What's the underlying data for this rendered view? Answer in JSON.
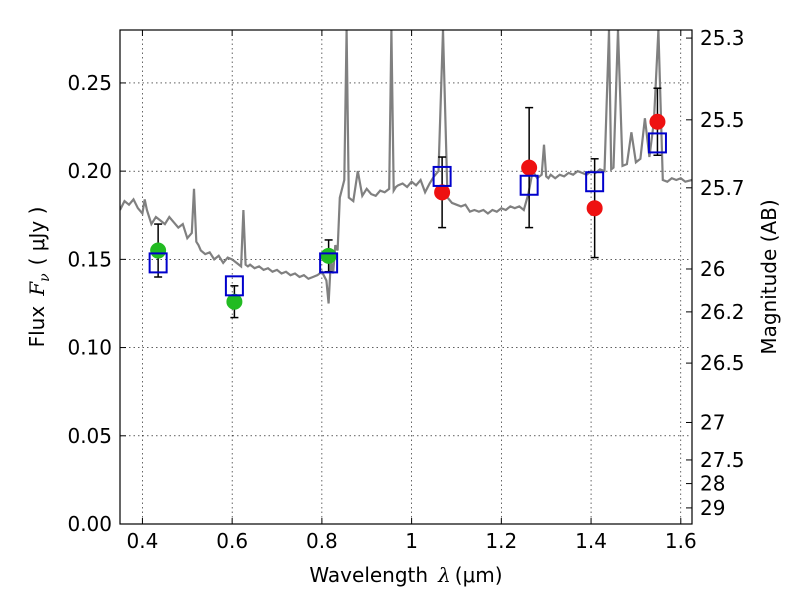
{
  "chart_data": {
    "type": "scatter",
    "xlabel_text": "Wavelength",
    "xlabel_symbol": "λ",
    "xlabel_unit": "(μm)",
    "ylabel_text": "Flux",
    "ylabel_symbol": "F",
    "ylabel_sub": "ν",
    "ylabel_unit": "( μJy )",
    "y2label": "Magnitude (AB)",
    "xlim": [
      0.35,
      1.625
    ],
    "ylim": [
      0.0,
      0.28
    ],
    "x_ticks": [
      0.4,
      0.6,
      0.8,
      1.0,
      1.2,
      1.4,
      1.6
    ],
    "x_tick_labels": [
      "0.4",
      "0.6",
      "0.8",
      "1",
      "1.2",
      "1.4",
      "1.6"
    ],
    "y_ticks": [
      0.0,
      0.05,
      0.1,
      0.15,
      0.2,
      0.25
    ],
    "y_tick_labels": [
      "0.00",
      "0.05",
      "0.10",
      "0.15",
      "0.20",
      "0.25"
    ],
    "y2_tick_labels": [
      "25.3",
      "25.5",
      "25.7",
      "26",
      "26.2",
      "26.5",
      "27",
      "27.5",
      "28",
      "29"
    ],
    "y2_tick_mags": [
      25.3,
      25.5,
      25.7,
      26,
      26.2,
      26.5,
      27,
      27.5,
      28,
      29
    ],
    "grid": true,
    "colors": {
      "spectrum": "#808080",
      "green_points": "#22bb22",
      "red_points": "#ee1111",
      "model_squares": "#0000cc",
      "errorbar": "#000000"
    },
    "spectrum": {
      "name": "",
      "x": [
        0.35,
        0.36,
        0.37,
        0.38,
        0.39,
        0.4,
        0.405,
        0.41,
        0.42,
        0.43,
        0.44,
        0.45,
        0.46,
        0.47,
        0.48,
        0.49,
        0.5,
        0.51,
        0.515,
        0.52,
        0.525,
        0.53,
        0.54,
        0.55,
        0.56,
        0.57,
        0.58,
        0.59,
        0.6,
        0.61,
        0.62,
        0.625,
        0.63,
        0.635,
        0.64,
        0.65,
        0.66,
        0.67,
        0.68,
        0.69,
        0.7,
        0.71,
        0.72,
        0.73,
        0.74,
        0.75,
        0.76,
        0.77,
        0.78,
        0.79,
        0.8,
        0.81,
        0.815,
        0.82,
        0.825,
        0.83,
        0.835,
        0.84,
        0.85,
        0.855,
        0.86,
        0.87,
        0.88,
        0.89,
        0.9,
        0.91,
        0.92,
        0.93,
        0.94,
        0.95,
        0.955,
        0.96,
        0.965,
        0.97,
        0.98,
        0.99,
        1.0,
        1.01,
        1.02,
        1.03,
        1.04,
        1.05,
        1.06,
        1.07,
        1.08,
        1.09,
        1.1,
        1.11,
        1.12,
        1.13,
        1.14,
        1.15,
        1.16,
        1.17,
        1.18,
        1.19,
        1.2,
        1.21,
        1.22,
        1.23,
        1.24,
        1.25,
        1.26,
        1.27,
        1.28,
        1.29,
        1.295,
        1.3,
        1.305,
        1.31,
        1.32,
        1.33,
        1.34,
        1.35,
        1.36,
        1.37,
        1.38,
        1.39,
        1.4,
        1.41,
        1.42,
        1.43,
        1.44,
        1.445,
        1.45,
        1.455,
        1.46,
        1.47,
        1.48,
        1.49,
        1.5,
        1.51,
        1.52,
        1.53,
        1.54,
        1.55,
        1.56,
        1.57,
        1.58,
        1.59,
        1.6,
        1.61,
        1.625
      ],
      "y": [
        0.178,
        0.183,
        0.181,
        0.184,
        0.179,
        0.176,
        0.184,
        0.178,
        0.17,
        0.174,
        0.172,
        0.17,
        0.174,
        0.171,
        0.168,
        0.17,
        0.162,
        0.165,
        0.19,
        0.16,
        0.158,
        0.155,
        0.153,
        0.154,
        0.15,
        0.152,
        0.148,
        0.151,
        0.15,
        0.148,
        0.146,
        0.178,
        0.147,
        0.146,
        0.147,
        0.145,
        0.146,
        0.144,
        0.145,
        0.143,
        0.144,
        0.142,
        0.143,
        0.141,
        0.142,
        0.14,
        0.141,
        0.139,
        0.14,
        0.141,
        0.143,
        0.138,
        0.125,
        0.15,
        0.142,
        0.158,
        0.155,
        0.185,
        0.195,
        0.28,
        0.185,
        0.183,
        0.2,
        0.186,
        0.19,
        0.187,
        0.186,
        0.189,
        0.188,
        0.19,
        0.28,
        0.189,
        0.191,
        0.192,
        0.193,
        0.191,
        0.194,
        0.192,
        0.195,
        0.188,
        0.193,
        0.197,
        0.2,
        0.28,
        0.185,
        0.182,
        0.181,
        0.18,
        0.181,
        0.177,
        0.178,
        0.177,
        0.178,
        0.176,
        0.178,
        0.177,
        0.179,
        0.178,
        0.18,
        0.179,
        0.18,
        0.178,
        0.187,
        0.2,
        0.196,
        0.198,
        0.215,
        0.197,
        0.196,
        0.198,
        0.196,
        0.198,
        0.197,
        0.199,
        0.198,
        0.2,
        0.199,
        0.198,
        0.2,
        0.199,
        0.201,
        0.2,
        0.28,
        0.201,
        0.202,
        0.24,
        0.28,
        0.203,
        0.204,
        0.222,
        0.205,
        0.207,
        0.23,
        0.208,
        0.228,
        0.28,
        0.195,
        0.194,
        0.196,
        0.195,
        0.196,
        0.194,
        0.195
      ]
    },
    "observed_green": {
      "x": [
        0.435,
        0.605,
        0.815
      ],
      "y": [
        0.155,
        0.126,
        0.152
      ],
      "yerr": [
        0.015,
        0.009,
        0.009
      ]
    },
    "observed_red": {
      "x": [
        1.068,
        1.262,
        1.408,
        1.548
      ],
      "y": [
        0.188,
        0.202,
        0.179,
        0.228
      ],
      "yerr": [
        0.02,
        0.034,
        0.028,
        0.019
      ]
    },
    "model": {
      "x": [
        0.435,
        0.605,
        0.815,
        1.068,
        1.262,
        1.408,
        1.548
      ],
      "y": [
        0.148,
        0.135,
        0.148,
        0.197,
        0.192,
        0.194,
        0.216
      ]
    }
  }
}
